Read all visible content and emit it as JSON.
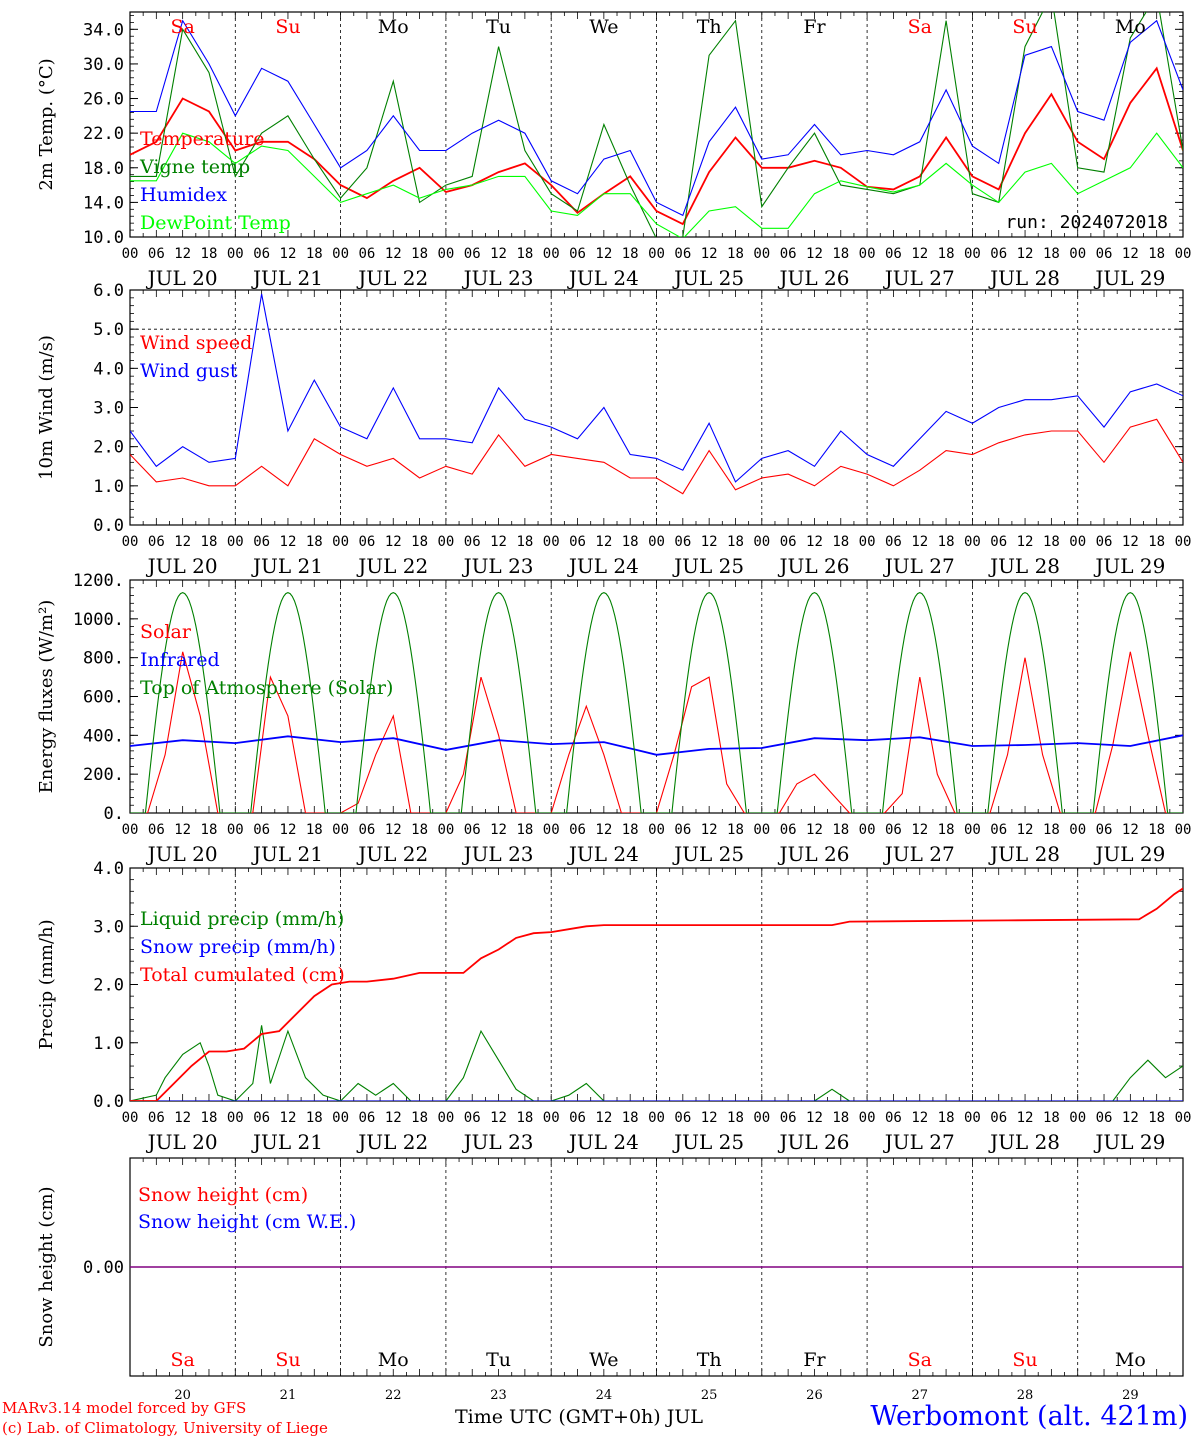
{
  "run_label": "run: 2024072018",
  "day_ticks": [
    "00",
    "06",
    "12",
    "18"
  ],
  "date_labels": [
    "JUL 20",
    "JUL 21",
    "JUL 22",
    "JUL 23",
    "JUL 24",
    "JUL 25",
    "JUL 26",
    "JUL 27",
    "JUL 28",
    "JUL 29"
  ],
  "weekdays": [
    {
      "name": "Sa",
      "color": "#ff0000"
    },
    {
      "name": "Su",
      "color": "#ff0000"
    },
    {
      "name": "Mo",
      "color": "#000000"
    },
    {
      "name": "Tu",
      "color": "#000000"
    },
    {
      "name": "We",
      "color": "#000000"
    },
    {
      "name": "Th",
      "color": "#000000"
    },
    {
      "name": "Fr",
      "color": "#000000"
    },
    {
      "name": "Sa",
      "color": "#ff0000"
    },
    {
      "name": "Su",
      "color": "#ff0000"
    },
    {
      "name": "Mo",
      "color": "#000000"
    }
  ],
  "bottom_day_numbers": [
    "20",
    "21",
    "22",
    "23",
    "24",
    "25",
    "26",
    "27",
    "28",
    "29"
  ],
  "footer": {
    "credit_line1": "MARv3.14 model forced by GFS",
    "credit_line2": "(c) Lab. of Climatology, University of Liege",
    "xaxis_title": "Time UTC (GMT+0h) JUL",
    "station": "Werbomont (alt. 421m)"
  },
  "colors": {
    "red": "#ff0000",
    "green": "#008000",
    "blue": "#0000ff",
    "lightgreen": "#00ff00",
    "purple": "#800080"
  },
  "chart_data": [
    {
      "type": "line",
      "ylabel": "2m Temp. (°C)",
      "ylim": [
        10,
        36
      ],
      "yticks": [
        "10.0",
        "14.0",
        "18.0",
        "22.0",
        "26.0",
        "30.0",
        "34.0"
      ],
      "ytick_values": [
        10,
        14,
        18,
        22,
        26,
        30,
        34
      ],
      "x_range_hours": [
        0,
        240
      ],
      "series": [
        {
          "name": "Temperature",
          "color": "#ff0000",
          "x": [
            0,
            6,
            12,
            18,
            24,
            30,
            36,
            42,
            48,
            54,
            60,
            66,
            72,
            78,
            84,
            90,
            96,
            102,
            108,
            114,
            120,
            126,
            132,
            138,
            144,
            150,
            156,
            162,
            168,
            174,
            180,
            186,
            192,
            198,
            204,
            210,
            216,
            222,
            228,
            234,
            240
          ],
          "y": [
            19.5,
            21,
            26,
            24.5,
            20,
            21,
            21,
            19,
            16,
            14.5,
            16.5,
            18,
            15.2,
            16,
            17.5,
            18.5,
            16,
            12.8,
            15,
            17,
            13,
            11.5,
            17.5,
            21.5,
            18,
            18,
            18.8,
            18,
            15.8,
            15.5,
            17,
            21.5,
            17,
            15.5,
            22,
            26.5,
            21,
            19,
            25.5,
            29.5,
            20
          ]
        },
        {
          "name": "Vigne temp",
          "color": "#008000",
          "x": [
            0,
            6,
            12,
            18,
            24,
            30,
            36,
            42,
            48,
            54,
            60,
            66,
            72,
            78,
            84,
            90,
            96,
            102,
            108,
            114,
            120,
            126,
            132,
            138,
            144,
            150,
            156,
            162,
            168,
            174,
            180,
            186,
            192,
            198,
            204,
            210,
            216,
            222,
            228,
            234,
            240
          ],
          "y": [
            17,
            17,
            34,
            29,
            17,
            22,
            24,
            19,
            14.5,
            18,
            28,
            14,
            16,
            17,
            32,
            20,
            15,
            13,
            23,
            16,
            9.8,
            10,
            31,
            35,
            13.5,
            18,
            22,
            16,
            15.5,
            15,
            16,
            35,
            15,
            14,
            32,
            38,
            18,
            17.5,
            33,
            38,
            20
          ]
        },
        {
          "name": "Humidex",
          "color": "#0000ff",
          "x": [
            0,
            6,
            12,
            18,
            24,
            30,
            36,
            42,
            48,
            54,
            60,
            66,
            72,
            78,
            84,
            90,
            96,
            102,
            108,
            114,
            120,
            126,
            132,
            138,
            144,
            150,
            156,
            162,
            168,
            174,
            180,
            186,
            192,
            198,
            204,
            210,
            216,
            222,
            228,
            234,
            240
          ],
          "y": [
            24.5,
            24.5,
            35,
            30,
            24,
            29.5,
            28,
            23,
            18,
            20,
            24,
            20,
            20,
            22,
            23.5,
            22,
            16.5,
            15,
            19,
            20,
            14,
            12.5,
            21,
            25,
            19,
            19.5,
            23,
            19.5,
            20,
            19.5,
            21,
            27,
            20.5,
            18.5,
            31,
            32,
            24.5,
            23.5,
            32.5,
            35,
            27
          ]
        },
        {
          "name": "DewPoint Temp",
          "color": "#00ff00",
          "x": [
            0,
            6,
            12,
            18,
            24,
            30,
            36,
            42,
            48,
            54,
            60,
            66,
            72,
            78,
            84,
            90,
            96,
            102,
            108,
            114,
            120,
            126,
            132,
            138,
            144,
            150,
            156,
            162,
            168,
            174,
            180,
            186,
            192,
            198,
            204,
            210,
            216,
            222,
            228,
            234,
            240
          ],
          "y": [
            16.5,
            16.5,
            22,
            21,
            18.5,
            20.5,
            20,
            17,
            14,
            15,
            16,
            14.5,
            15.5,
            16,
            17,
            17,
            13,
            12.5,
            15,
            15,
            11.5,
            9.8,
            13,
            13.5,
            11,
            11,
            15,
            16.5,
            15.8,
            15.2,
            16,
            18.5,
            16,
            14,
            17.5,
            18.5,
            15,
            16.5,
            18,
            22,
            18
          ]
        }
      ]
    },
    {
      "type": "line",
      "ylabel": "10m Wind (m/s)",
      "ylim": [
        0,
        6
      ],
      "yticks": [
        "0.0",
        "1.0",
        "2.0",
        "3.0",
        "4.0",
        "5.0",
        "6.0"
      ],
      "ytick_values": [
        0,
        1,
        2,
        3,
        4,
        5,
        6
      ],
      "ref_line": 5,
      "x_range_hours": [
        0,
        240
      ],
      "series": [
        {
          "name": "Wind speed",
          "color": "#ff0000",
          "x": [
            0,
            6,
            12,
            18,
            24,
            30,
            36,
            42,
            48,
            54,
            60,
            66,
            72,
            78,
            84,
            90,
            96,
            102,
            108,
            114,
            120,
            126,
            132,
            138,
            144,
            150,
            156,
            162,
            168,
            174,
            180,
            186,
            192,
            198,
            204,
            210,
            216,
            222,
            228,
            234,
            240
          ],
          "y": [
            1.8,
            1.1,
            1.2,
            1,
            1,
            1.5,
            1,
            2.2,
            1.8,
            1.5,
            1.7,
            1.2,
            1.5,
            1.3,
            2.3,
            1.5,
            1.8,
            1.7,
            1.6,
            1.2,
            1.2,
            0.8,
            1.9,
            0.9,
            1.2,
            1.3,
            1,
            1.5,
            1.3,
            1,
            1.4,
            1.9,
            1.8,
            2.1,
            2.3,
            2.4,
            2.4,
            1.6,
            2.5,
            2.7,
            1.6
          ]
        },
        {
          "name": "Wind gust",
          "color": "#0000ff",
          "x": [
            0,
            6,
            12,
            18,
            24,
            30,
            36,
            42,
            48,
            54,
            60,
            66,
            72,
            78,
            84,
            90,
            96,
            102,
            108,
            114,
            120,
            126,
            132,
            138,
            144,
            150,
            156,
            162,
            168,
            174,
            180,
            186,
            192,
            198,
            204,
            210,
            216,
            222,
            228,
            234,
            240
          ],
          "y": [
            2.4,
            1.5,
            2,
            1.6,
            1.7,
            5.9,
            2.4,
            3.7,
            2.5,
            2.2,
            3.5,
            2.2,
            2.2,
            2.1,
            3.5,
            2.7,
            2.5,
            2.2,
            3,
            1.8,
            1.7,
            1.4,
            2.6,
            1.1,
            1.7,
            1.9,
            1.5,
            2.4,
            1.8,
            1.5,
            2.2,
            2.9,
            2.6,
            3,
            3.2,
            3.2,
            3.3,
            2.5,
            3.4,
            3.6,
            3.3
          ]
        }
      ]
    },
    {
      "type": "line",
      "ylabel": "Energy fluxes (W/m²)",
      "ylim": [
        0,
        1200
      ],
      "yticks": [
        "0.",
        "200.",
        "400.",
        "600.",
        "800.",
        "1000.",
        "1200."
      ],
      "ytick_values": [
        0,
        200,
        400,
        600,
        800,
        1000,
        1200
      ],
      "x_range_hours": [
        0,
        240
      ],
      "series": [
        {
          "name": "Solar",
          "color": "#ff0000",
          "x": [
            0,
            4,
            8,
            12,
            16,
            20,
            24,
            28,
            32,
            36,
            40,
            44,
            48,
            52,
            56,
            60,
            64,
            68,
            72,
            76,
            80,
            84,
            88,
            92,
            96,
            100,
            104,
            108,
            112,
            116,
            120,
            124,
            128,
            132,
            136,
            140,
            144,
            148,
            152,
            156,
            160,
            164,
            168,
            172,
            176,
            180,
            184,
            188,
            192,
            196,
            200,
            204,
            208,
            212,
            216,
            220,
            224,
            228,
            232,
            236,
            240
          ],
          "y": [
            0,
            0,
            300,
            830,
            500,
            0,
            0,
            0,
            700,
            500,
            0,
            0,
            0,
            50,
            300,
            500,
            0,
            0,
            0,
            200,
            700,
            400,
            0,
            0,
            0,
            300,
            550,
            300,
            0,
            0,
            0,
            300,
            650,
            700,
            150,
            0,
            0,
            0,
            150,
            200,
            100,
            0,
            0,
            0,
            100,
            700,
            200,
            0,
            0,
            0,
            300,
            800,
            300,
            0,
            0,
            0,
            350,
            830,
            400,
            0,
            0
          ]
        },
        {
          "name": "Infrared",
          "color": "#0000ff",
          "x": [
            0,
            12,
            24,
            36,
            48,
            60,
            72,
            84,
            96,
            108,
            120,
            132,
            144,
            156,
            168,
            180,
            192,
            204,
            216,
            228,
            240
          ],
          "y": [
            345,
            375,
            360,
            395,
            365,
            385,
            325,
            375,
            355,
            365,
            300,
            330,
            335,
            385,
            375,
            390,
            345,
            350,
            360,
            345,
            400
          ]
        },
        {
          "name": "Top of Atmosphere (Solar)",
          "color": "#008000",
          "type": "daily_bell",
          "peak": 1135,
          "sunrise_h": 3.5,
          "sunset_h": 20.5
        }
      ]
    },
    {
      "type": "line",
      "ylabel": "Precip (mm/h)",
      "ylim": [
        0,
        4
      ],
      "yticks": [
        "0.0",
        "1.0",
        "2.0",
        "3.0",
        "4.0"
      ],
      "ytick_values": [
        0,
        1,
        2,
        3,
        4
      ],
      "x_range_hours": [
        0,
        240
      ],
      "series": [
        {
          "name": "Liquid precip (mm/h)",
          "color": "#008000",
          "x": [
            0,
            6,
            8,
            12,
            16,
            18,
            20,
            24,
            28,
            30,
            32,
            36,
            40,
            44,
            48,
            52,
            56,
            60,
            64,
            68,
            72,
            76,
            80,
            84,
            88,
            92,
            96,
            100,
            104,
            108,
            112,
            116,
            120,
            156,
            160,
            164,
            168,
            224,
            228,
            232,
            236,
            240
          ],
          "y": [
            0,
            0.1,
            0.4,
            0.8,
            1,
            0.6,
            0.1,
            0,
            0.3,
            1.3,
            0.3,
            1.2,
            0.4,
            0.1,
            0,
            0.3,
            0.1,
            0.3,
            0,
            0,
            0,
            0.4,
            1.2,
            0.7,
            0.2,
            0,
            0,
            0.1,
            0.3,
            0,
            0,
            0,
            0,
            0,
            0.2,
            0,
            0,
            0,
            0.4,
            0.7,
            0.4,
            0.6
          ]
        },
        {
          "name": "Snow precip (mm/h)",
          "color": "#0000ff",
          "x": [
            0,
            240
          ],
          "y": [
            0,
            0
          ]
        },
        {
          "name": "Total cumulated (cm)",
          "color": "#ff0000",
          "x": [
            0,
            6,
            10,
            14,
            18,
            22,
            26,
            30,
            34,
            38,
            42,
            46,
            50,
            54,
            60,
            66,
            72,
            76,
            80,
            84,
            88,
            92,
            96,
            100,
            104,
            108,
            120,
            132,
            144,
            160,
            164,
            200,
            230,
            234,
            238,
            240
          ],
          "y": [
            0,
            0,
            0.3,
            0.6,
            0.85,
            0.85,
            0.9,
            1.15,
            1.2,
            1.5,
            1.8,
            2.0,
            2.05,
            2.05,
            2.1,
            2.2,
            2.2,
            2.2,
            2.45,
            2.6,
            2.8,
            2.88,
            2.9,
            2.95,
            3.0,
            3.02,
            3.02,
            3.02,
            3.02,
            3.02,
            3.08,
            3.1,
            3.12,
            3.3,
            3.55,
            3.65
          ]
        }
      ]
    },
    {
      "type": "line",
      "ylabel": "Snow height (cm)",
      "ylim": [
        -1,
        1
      ],
      "yticks": [
        "0.00"
      ],
      "ytick_values": [
        0
      ],
      "x_range_hours": [
        0,
        240
      ],
      "series": [
        {
          "name": "Snow height (cm)",
          "color": "#ff0000",
          "x": [
            0,
            240
          ],
          "y": [
            0,
            0
          ]
        },
        {
          "name": "Snow height (cm W.E.)",
          "color": "#0000ff",
          "x": [
            0,
            240
          ],
          "y": [
            0,
            0
          ]
        }
      ]
    }
  ]
}
